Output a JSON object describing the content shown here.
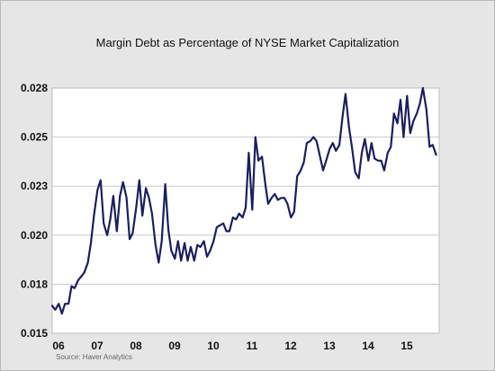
{
  "chart_data": {
    "type": "line",
    "title": "Margin Debt as Percentage of NYSE Market Capitalization",
    "source": "Source:   Haver Analytics",
    "xlabel": "",
    "ylabel": "",
    "ylim": [
      0.015,
      0.0275
    ],
    "y_tick_labels": [
      "0.028",
      "0.025",
      "0.023",
      "0.020",
      "0.018",
      "0.015"
    ],
    "y_ticks": [
      0.0275,
      0.025,
      0.0225,
      0.02,
      0.0175,
      0.015
    ],
    "x_tick_labels": [
      "06",
      "07",
      "08",
      "09",
      "10",
      "11",
      "12",
      "13",
      "14",
      "15"
    ],
    "x_ticks": [
      2006.0,
      2007.0,
      2008.0,
      2009.0,
      2010.0,
      2011.0,
      2012.0,
      2013.0,
      2014.0,
      2015.0
    ],
    "xlim": [
      2006.0,
      2016.0
    ],
    "grid": true,
    "line_color": "#1b1f5c",
    "series": [
      {
        "x": [
          2006.0,
          2006.08,
          2006.17,
          2006.25,
          2006.33,
          2006.42,
          2006.5,
          2006.58,
          2006.67,
          2006.75,
          2006.83,
          2006.92,
          2007.0,
          2007.08,
          2007.17,
          2007.25,
          2007.33,
          2007.42,
          2007.5,
          2007.58,
          2007.67,
          2007.75,
          2007.83,
          2007.92,
          2008.0,
          2008.08,
          2008.17,
          2008.25,
          2008.33,
          2008.42,
          2008.5,
          2008.58,
          2008.67,
          2008.75,
          2008.83,
          2008.92,
          2009.0,
          2009.08,
          2009.17,
          2009.25,
          2009.33,
          2009.42,
          2009.5,
          2009.58,
          2009.67,
          2009.75,
          2009.83,
          2009.92,
          2010.0,
          2010.08,
          2010.17,
          2010.25,
          2010.33,
          2010.42,
          2010.5,
          2010.58,
          2010.67,
          2010.75,
          2010.83,
          2010.92,
          2011.0,
          2011.08,
          2011.17,
          2011.25,
          2011.33,
          2011.42,
          2011.5,
          2011.58,
          2011.67,
          2011.75,
          2011.83,
          2011.92,
          2012.0,
          2012.08,
          2012.17,
          2012.25,
          2012.33,
          2012.42,
          2012.5,
          2012.58,
          2012.67,
          2012.75,
          2012.83,
          2012.92,
          2013.0,
          2013.08,
          2013.17,
          2013.25,
          2013.33,
          2013.42,
          2013.5,
          2013.58,
          2013.67,
          2013.75,
          2013.83,
          2013.92,
          2014.0,
          2014.08,
          2014.17,
          2014.25,
          2014.33,
          2014.42,
          2014.5,
          2014.58,
          2014.67,
          2014.75,
          2014.83,
          2014.92,
          2015.0,
          2015.08,
          2015.17,
          2015.25,
          2015.33,
          2015.42,
          2015.5,
          2015.58,
          2015.67,
          2015.75,
          2015.83,
          2015.92
        ],
        "values": [
          0.0164,
          0.0162,
          0.0165,
          0.016,
          0.0165,
          0.0165,
          0.0174,
          0.0173,
          0.0177,
          0.0179,
          0.0181,
          0.0186,
          0.0196,
          0.021,
          0.0223,
          0.0228,
          0.0206,
          0.02,
          0.0208,
          0.022,
          0.0202,
          0.022,
          0.0227,
          0.0219,
          0.0198,
          0.0201,
          0.0214,
          0.0228,
          0.021,
          0.0224,
          0.0219,
          0.0211,
          0.0195,
          0.0186,
          0.0197,
          0.0226,
          0.0203,
          0.0192,
          0.0188,
          0.0197,
          0.0187,
          0.0196,
          0.0187,
          0.0194,
          0.0187,
          0.0195,
          0.0194,
          0.0197,
          0.0189,
          0.0192,
          0.0197,
          0.0204,
          0.0205,
          0.0206,
          0.0202,
          0.0202,
          0.0209,
          0.0208,
          0.0211,
          0.0209,
          0.0214,
          0.0242,
          0.0213,
          0.025,
          0.0238,
          0.024,
          0.0227,
          0.0216,
          0.0219,
          0.0221,
          0.0218,
          0.0219,
          0.0219,
          0.0216,
          0.0209,
          0.0212,
          0.023,
          0.0233,
          0.0237,
          0.0247,
          0.0248,
          0.025,
          0.0248,
          0.024,
          0.0233,
          0.0238,
          0.0244,
          0.0247,
          0.0243,
          0.0246,
          0.026,
          0.0272,
          0.0255,
          0.0244,
          0.0232,
          0.0229,
          0.0242,
          0.0249,
          0.0238,
          0.0247,
          0.0239,
          0.0238,
          0.0238,
          0.0233,
          0.0242,
          0.0245,
          0.0262,
          0.0257,
          0.0269,
          0.025,
          0.0271,
          0.0252,
          0.0258,
          0.0262,
          0.0267,
          0.0275,
          0.0264,
          0.0245,
          0.0246,
          0.0241
        ]
      }
    ]
  }
}
